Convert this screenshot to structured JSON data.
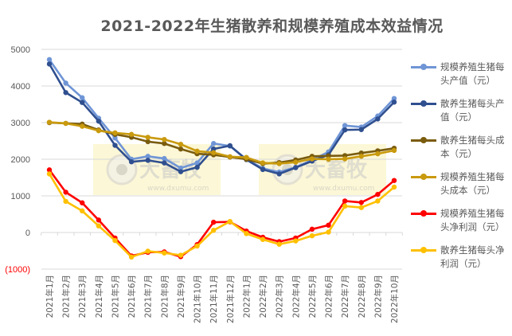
{
  "chart_data": {
    "type": "line",
    "title": "2021-2022年生猪散养和规模养殖成本效益情况",
    "xlabel": "",
    "ylabel": "",
    "ylim": [
      -1000,
      5000
    ],
    "yticks": [
      "5000",
      "4000",
      "3000",
      "2000",
      "1000",
      "0",
      "(1000)"
    ],
    "grid": true,
    "legend_position": "right",
    "categories": [
      "2021年1月",
      "2021年2月",
      "2021年3月",
      "2021年4月",
      "2021年5月",
      "2021年6月",
      "2021年7月",
      "2021年8月",
      "2021年9月",
      "2021年10月",
      "2021年11月",
      "2021年12月",
      "2022年1月",
      "2022年2月",
      "2022年3月",
      "2022年4月",
      "2022年5月",
      "2022年6月",
      "2022年7月",
      "2022年8月",
      "2022年9月",
      "2022年10月"
    ],
    "series": [
      {
        "name": "规模养殖生猪每头产值（元）",
        "color": "#6f95d6",
        "values": [
          4720,
          4080,
          3680,
          3120,
          2580,
          2000,
          2080,
          2020,
          1760,
          1900,
          2430,
          2360,
          2000,
          1750,
          1650,
          1780,
          1980,
          2200,
          2920,
          2880,
          3180,
          3660
        ]
      },
      {
        "name": "散养生猪每头产值（元）",
        "color": "#2f4f8f",
        "values": [
          4600,
          3820,
          3550,
          3040,
          2380,
          1930,
          1970,
          1900,
          1660,
          1780,
          2280,
          2370,
          1990,
          1720,
          1600,
          1770,
          1950,
          2120,
          2800,
          2810,
          3100,
          3560
        ]
      },
      {
        "name": "散养生猪每头成本（元）",
        "color": "#7a5c0e",
        "values": [
          3000,
          2980,
          2960,
          2800,
          2680,
          2600,
          2480,
          2430,
          2280,
          2150,
          2120,
          2060,
          2000,
          1880,
          1910,
          1980,
          2080,
          2090,
          2100,
          2170,
          2230,
          2300
        ]
      },
      {
        "name": "规模养殖生猪每头成本（元）",
        "color": "#c99a0e",
        "values": [
          3010,
          2980,
          2900,
          2780,
          2720,
          2680,
          2600,
          2540,
          2410,
          2220,
          2180,
          2070,
          2050,
          1900,
          1880,
          1920,
          2010,
          2000,
          2010,
          2080,
          2150,
          2240
        ]
      },
      {
        "name": "规模养殖生猪每头净利润（元）",
        "color": "#ff0000",
        "values": [
          1710,
          1100,
          810,
          340,
          -150,
          -640,
          -540,
          -530,
          -660,
          -330,
          280,
          290,
          40,
          -130,
          -250,
          -150,
          90,
          200,
          860,
          820,
          1040,
          1420
        ]
      },
      {
        "name": "散养生猪每头净利润（元）",
        "color": "#ffc000",
        "values": [
          1600,
          850,
          590,
          180,
          -220,
          -670,
          -510,
          -560,
          -620,
          -370,
          60,
          300,
          -30,
          -190,
          -320,
          -230,
          -90,
          10,
          720,
          680,
          860,
          1240
        ]
      }
    ],
    "annotations": [
      "www.dxumu.com"
    ]
  },
  "legend": [
    {
      "label": "规模养殖生猪每头产值（元）",
      "color": "#6f95d6"
    },
    {
      "label": "散养生猪每头产值（元）",
      "color": "#2f4f8f"
    },
    {
      "label": "散养生猪每头成本（元）",
      "color": "#7a5c0e"
    },
    {
      "label": "规模养殖生猪每头成本（元）",
      "color": "#c99a0e"
    },
    {
      "label": "规模养殖生猪每头净利润（元）",
      "color": "#ff0000"
    },
    {
      "label": "散养生猪每头净利润（元）",
      "color": "#ffc000"
    }
  ],
  "watermark": {
    "brand": "大畜牧",
    "url": "www.dxumu.com"
  }
}
